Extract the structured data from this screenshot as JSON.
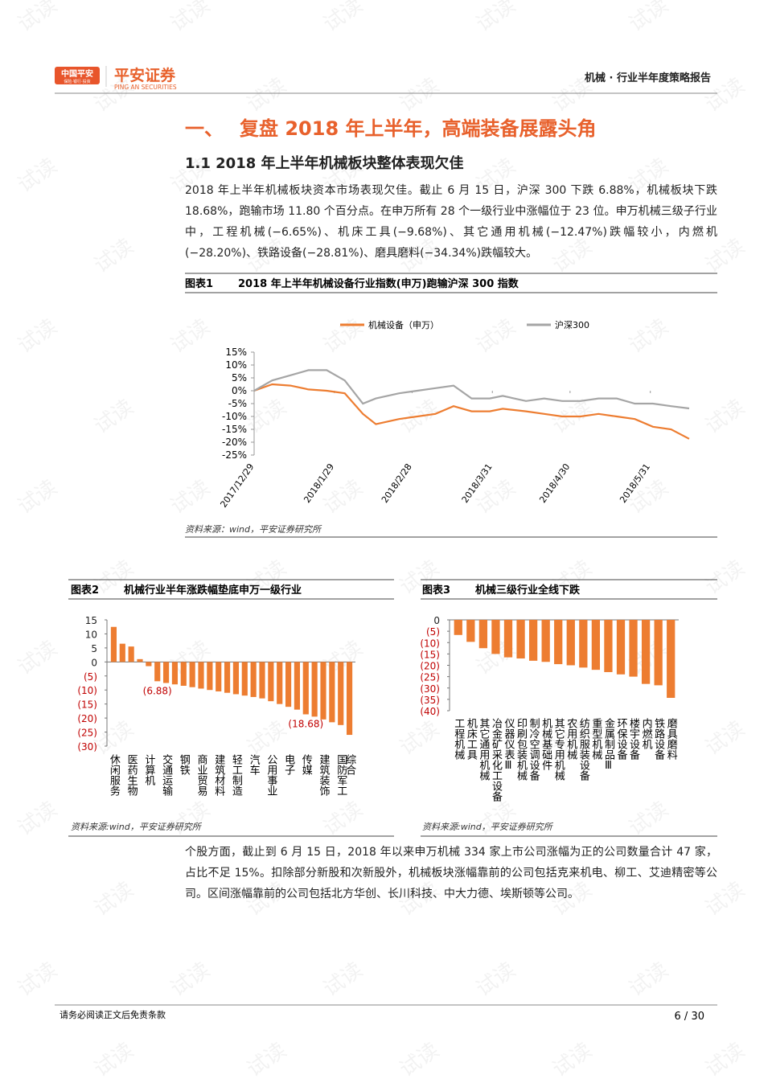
{
  "header": {
    "logo_badge": "中国平安",
    "logo_badge_sub": "保险·银行·投资",
    "logo_name": "平安证券",
    "logo_en": "PING AN SECURITIES",
    "report": "机械 · 行业半年度策略报告"
  },
  "watermark": "试读",
  "section": {
    "number": "一、",
    "title": "复盘 2018 年上半年，高端装备展露头角"
  },
  "subsection": "1.1 2018 年上半年机械板块整体表现欠佳",
  "paragraphs": [
    "2018 年上半年机械板块资本市场表现欠佳。截止 6 月 15 日，沪深 300 下跌 6.88%，机械板块下跌 18.68%，跑输市场 11.80 个百分点。在申万所有 28 个一级行业中涨幅位于 23 位。申万机械三级子行业中，工程机械(−6.65%)、机床工具(−9.68%)、其它通用机械(−12.47%)跌幅较小，内燃机(−28.20%)、铁路设备(−28.81%)、磨具磨料(−34.34%)跌幅较大。",
    "个股方面，截止到 6 月 15 日，2018 年以来申万机械 334 家上市公司涨幅为正的公司数量合计 47 家，占比不足 15%。扣除部分新股和次新股外，机械板块涨幅靠前的公司包括克来机电、柳工、艾迪精密等公司。区间涨幅靠前的公司包括北方华创、长川科技、中大力德、埃斯顿等公司。"
  ],
  "chart_data": [
    {
      "type": "line",
      "label": "图表1",
      "title": "2018 年上半年机械设备行业指数(申万)跑输沪深 300 指数",
      "source": "资料来源：wind，平安证券研究所",
      "x": [
        "2017/12/29",
        "2018/1/5",
        "2018/1/12",
        "2018/1/19",
        "2018/1/26",
        "2018/2/2",
        "2018/2/9",
        "2018/2/14",
        "2018/2/23",
        "2018/3/2",
        "2018/3/9",
        "2018/3/16",
        "2018/3/23",
        "2018/3/30",
        "2018/4/4",
        "2018/4/13",
        "2018/4/20",
        "2018/4/27",
        "2018/5/4",
        "2018/5/11",
        "2018/5/18",
        "2018/5/25",
        "2018/6/1",
        "2018/6/8",
        "2018/6/15"
      ],
      "series": [
        {
          "name": "机械设备（申万）",
          "color": "#ed7d31",
          "values": [
            0,
            2.5,
            2,
            0.5,
            0,
            -1,
            -9,
            -13,
            -11,
            -10,
            -9,
            -6,
            -8,
            -8,
            -7,
            -8,
            -9,
            -10,
            -10,
            -9,
            -10,
            -11,
            -14,
            -15,
            -18.68
          ]
        },
        {
          "name": "沪深300",
          "color": "#a5a5a5",
          "values": [
            0,
            4,
            6,
            8,
            8,
            4,
            -5,
            -3,
            -1,
            0,
            1,
            2,
            -3,
            -3,
            -2,
            -4,
            -3,
            -4,
            -4,
            -3,
            -3,
            -5,
            -5,
            -6,
            -6.88
          ]
        }
      ],
      "xlim": [
        "2017/12/29",
        "2018/6/15"
      ],
      "xticks": [
        "2017/12/29",
        "2018/1/29",
        "2018/2/28",
        "2018/3/31",
        "2018/4/30",
        "2018/5/31"
      ],
      "ylim": [
        -25,
        15
      ],
      "yticks": [
        {
          "value": 15,
          "label": "15%"
        },
        {
          "value": 10,
          "label": "10%"
        },
        {
          "value": 5,
          "label": "5%"
        },
        {
          "value": 0,
          "label": "0%"
        },
        {
          "value": -5,
          "label": "-5%"
        },
        {
          "value": -10,
          "label": "-10%"
        },
        {
          "value": -15,
          "label": "-15%"
        },
        {
          "value": -20,
          "label": "-20%"
        },
        {
          "value": -25,
          "label": "-25%"
        }
      ],
      "legend": "top"
    },
    {
      "type": "bar",
      "label": "图表2",
      "title": "机械行业半年涨跌幅垫底申万一级行业",
      "source": "资料来源:wind，平安证券研究所",
      "color": "#ed7d31",
      "negative_label_color": "#c00000",
      "categories": [
        "休闲服务",
        null,
        "医药生物",
        null,
        "计算机",
        null,
        "交通运输",
        null,
        "钢铁",
        null,
        "商业贸易",
        null,
        "建筑材料",
        null,
        "轻工制造",
        null,
        "汽车",
        null,
        "公用事业",
        null,
        "电子",
        null,
        "传媒",
        null,
        "建筑装饰",
        null,
        "国防军工",
        "综合"
      ],
      "values": [
        12.5,
        6.5,
        5.5,
        1,
        -1.5,
        -6.88,
        -7.5,
        -8,
        -8.5,
        -9,
        -9.5,
        -10,
        -10.5,
        -11,
        -11.5,
        -12,
        -12.5,
        -13,
        -14,
        -15,
        -16,
        -17,
        -18.68,
        -19.5,
        -20.5,
        -21.5,
        -22.5,
        -26
      ],
      "value_labels": [
        null,
        null,
        null,
        null,
        null,
        "(6.88)",
        null,
        null,
        null,
        null,
        null,
        null,
        null,
        null,
        null,
        null,
        null,
        null,
        null,
        null,
        null,
        null,
        "(18.68)",
        null,
        null,
        null,
        null,
        null
      ],
      "ylim": [
        -30,
        15
      ],
      "yticks": [
        15,
        10,
        5,
        0,
        {
          "value": -5,
          "label": "(5)"
        },
        {
          "value": -10,
          "label": "(10)"
        },
        {
          "value": -15,
          "label": "(15)"
        },
        {
          "value": -20,
          "label": "(20)"
        },
        {
          "value": -25,
          "label": "(25)"
        },
        {
          "value": -30,
          "label": "(30)"
        }
      ]
    },
    {
      "type": "bar",
      "label": "图表3",
      "title": "机械三级行业全线下跌",
      "source": "资料来源:wind，平安证券研究所",
      "color": "#ed7d31",
      "negative_label_color": "#c00000",
      "categories": [
        "工程机械",
        "机床工具",
        "其它通用机械",
        "冶金矿采化工设备",
        "仪器仪表Ⅲ",
        "印刷包装机械",
        "制冷空调设备",
        "机械基础件",
        "其它专用机械",
        "农用机械",
        "纺织服装设备",
        "重型机械",
        "金属制品Ⅲ",
        "环保设备",
        "楼宇设备",
        "内燃机",
        "铁路设备",
        "磨具磨料"
      ],
      "values": [
        -6.65,
        -9.68,
        -12.47,
        -15,
        -16.5,
        -17,
        -18,
        -18.5,
        -19.5,
        -20,
        -21,
        -22,
        -23,
        -24,
        -25,
        -28.2,
        -28.81,
        -34.34
      ],
      "ylim": [
        -40,
        0
      ],
      "yticks": [
        0,
        {
          "value": -5,
          "label": "(5)"
        },
        {
          "value": -10,
          "label": "(10)"
        },
        {
          "value": -15,
          "label": "(15)"
        },
        {
          "value": -20,
          "label": "(20)"
        },
        {
          "value": -25,
          "label": "(25)"
        },
        {
          "value": -30,
          "label": "(30)"
        },
        {
          "value": -35,
          "label": "(35)"
        },
        {
          "value": -40,
          "label": "(40)"
        }
      ]
    }
  ],
  "footer": {
    "disclaimer": "请务必阅读正文后免责条款",
    "page": "6 / 30"
  }
}
